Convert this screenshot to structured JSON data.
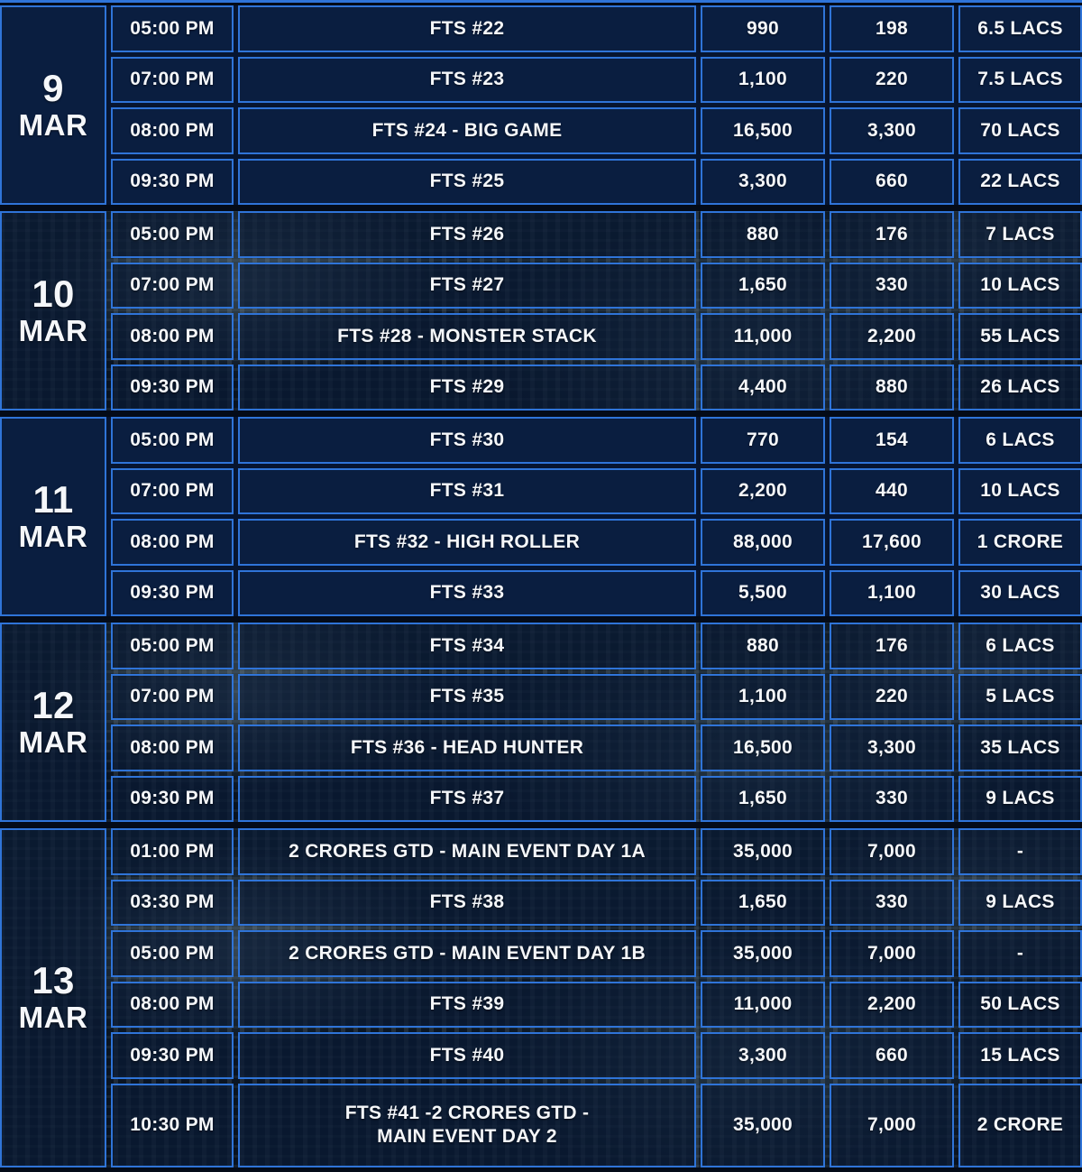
{
  "colors": {
    "border": "#2f74d8",
    "cell_background": "#0a1e40",
    "page_background": "#040b18",
    "text": "#f5f7fa"
  },
  "schedule": {
    "days": [
      {
        "date": "9",
        "month": "MAR",
        "rows": [
          {
            "time": "05:00 PM",
            "event": "FTS #22",
            "buyin": "990",
            "fee": "198",
            "gtd": "6.5 LACS"
          },
          {
            "time": "07:00 PM",
            "event": "FTS #23",
            "buyin": "1,100",
            "fee": "220",
            "gtd": "7.5 LACS"
          },
          {
            "time": "08:00 PM",
            "event": "FTS #24 - BIG GAME",
            "buyin": "16,500",
            "fee": "3,300",
            "gtd": "70 LACS"
          },
          {
            "time": "09:30 PM",
            "event": "FTS #25",
            "buyin": "3,300",
            "fee": "660",
            "gtd": "22 LACS"
          }
        ]
      },
      {
        "date": "10",
        "month": "MAR",
        "rows": [
          {
            "time": "05:00 PM",
            "event": "FTS #26",
            "buyin": "880",
            "fee": "176",
            "gtd": "7 LACS"
          },
          {
            "time": "07:00 PM",
            "event": "FTS #27",
            "buyin": "1,650",
            "fee": "330",
            "gtd": "10 LACS"
          },
          {
            "time": "08:00 PM",
            "event": "FTS #28 - MONSTER STACK",
            "buyin": "11,000",
            "fee": "2,200",
            "gtd": "55 LACS"
          },
          {
            "time": "09:30 PM",
            "event": "FTS #29",
            "buyin": "4,400",
            "fee": "880",
            "gtd": "26 LACS"
          }
        ]
      },
      {
        "date": "11",
        "month": "MAR",
        "rows": [
          {
            "time": "05:00 PM",
            "event": "FTS #30",
            "buyin": "770",
            "fee": "154",
            "gtd": "6 LACS"
          },
          {
            "time": "07:00 PM",
            "event": "FTS #31",
            "buyin": "2,200",
            "fee": "440",
            "gtd": "10 LACS"
          },
          {
            "time": "08:00 PM",
            "event": "FTS #32 - HIGH ROLLER",
            "buyin": "88,000",
            "fee": "17,600",
            "gtd": "1 CRORE"
          },
          {
            "time": "09:30 PM",
            "event": "FTS #33",
            "buyin": "5,500",
            "fee": "1,100",
            "gtd": "30 LACS"
          }
        ]
      },
      {
        "date": "12",
        "month": "MAR",
        "rows": [
          {
            "time": "05:00 PM",
            "event": "FTS #34",
            "buyin": "880",
            "fee": "176",
            "gtd": "6 LACS"
          },
          {
            "time": "07:00 PM",
            "event": "FTS #35",
            "buyin": "1,100",
            "fee": "220",
            "gtd": "5 LACS"
          },
          {
            "time": "08:00 PM",
            "event": "FTS #36 - HEAD HUNTER",
            "buyin": "16,500",
            "fee": "3,300",
            "gtd": "35 LACS"
          },
          {
            "time": "09:30 PM",
            "event": "FTS #37",
            "buyin": "1,650",
            "fee": "330",
            "gtd": "9 LACS"
          }
        ]
      },
      {
        "date": "13",
        "month": "MAR",
        "rows": [
          {
            "time": "01:00 PM",
            "event": "2 CRORES GTD - MAIN EVENT DAY 1A",
            "buyin": "35,000",
            "fee": "7,000",
            "gtd": "-"
          },
          {
            "time": "03:30 PM",
            "event": "FTS #38",
            "buyin": "1,650",
            "fee": "330",
            "gtd": "9 LACS"
          },
          {
            "time": "05:00 PM",
            "event": "2 CRORES GTD - MAIN EVENT DAY 1B",
            "buyin": "35,000",
            "fee": "7,000",
            "gtd": "-"
          },
          {
            "time": "08:00 PM",
            "event": "FTS #39",
            "buyin": "11,000",
            "fee": "2,200",
            "gtd": "50 LACS"
          },
          {
            "time": "09:30 PM",
            "event": "FTS #40",
            "buyin": "3,300",
            "fee": "660",
            "gtd": "15 LACS"
          },
          {
            "time": "10:30 PM",
            "event": "FTS #41 -2 CRORES GTD -\nMAIN EVENT DAY 2",
            "buyin": "35,000",
            "fee": "7,000",
            "gtd": "2 CRORE"
          }
        ]
      }
    ]
  }
}
